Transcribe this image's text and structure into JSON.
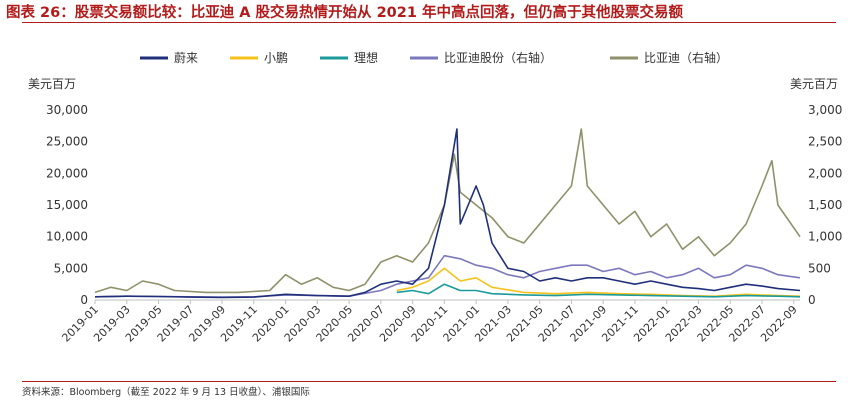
{
  "figure": {
    "title": "图表 26：股票交易额比较：比亚迪 A 股交易热情开始从 2021 年中高点回落，但仍高于其他股票交易额",
    "source": "资料来源：Bloomberg（截至 2022 年 9 月 13 日收盘）、浦银国际"
  },
  "chart_data": {
    "type": "line",
    "left_unit": "美元百万",
    "right_unit": "美元百万",
    "y_left": {
      "min": 0,
      "max": 30000,
      "ticks": [
        "0",
        "5,000",
        "10,000",
        "15,000",
        "20,000",
        "25,000",
        "30,000"
      ]
    },
    "y_right": {
      "min": 0,
      "max": 3000,
      "ticks": [
        "0",
        "500",
        "1,000",
        "1,500",
        "2,000",
        "2,500",
        "3,000"
      ]
    },
    "x_ticks": [
      "2019-01",
      "2019-03",
      "2019-05",
      "2019-07",
      "2019-09",
      "2019-11",
      "2020-01",
      "2020-03",
      "2020-05",
      "2020-07",
      "2020-09",
      "2020-11",
      "2021-01",
      "2021-03",
      "2021-05",
      "2021-07",
      "2021-09",
      "2021-11",
      "2022-01",
      "2022-03",
      "2022-05",
      "2022-07",
      "2022-09"
    ],
    "x_range": [
      "2019-01",
      "2022-09-13"
    ],
    "grid": false,
    "legend_position": "top",
    "series": [
      {
        "name": "蔚来",
        "axis": "left",
        "color": "#1f2f7a",
        "x": [
          "2019-01",
          "2019-03",
          "2019-05",
          "2019-07",
          "2019-09",
          "2019-11",
          "2020-01",
          "2020-03",
          "2020-05",
          "2020-06",
          "2020-07",
          "2020-08",
          "2020-09",
          "2020-10",
          "2020-11",
          "2020-11-25",
          "2020-12",
          "2021-01",
          "2021-01-15",
          "2021-02",
          "2021-03",
          "2021-04",
          "2021-05",
          "2021-06",
          "2021-07",
          "2021-08",
          "2021-09",
          "2021-10",
          "2021-11",
          "2021-12",
          "2022-01",
          "2022-02",
          "2022-03",
          "2022-04",
          "2022-05",
          "2022-06",
          "2022-07",
          "2022-08",
          "2022-09-13"
        ],
        "y": [
          500,
          600,
          550,
          450,
          400,
          450,
          900,
          700,
          600,
          1200,
          2500,
          3000,
          2500,
          5000,
          15000,
          27000,
          12000,
          18000,
          15000,
          9000,
          5000,
          4500,
          3000,
          3500,
          3000,
          3500,
          3500,
          3000,
          2500,
          3000,
          2500,
          2000,
          1800,
          1500,
          2000,
          2500,
          2200,
          1800,
          1500
        ]
      },
      {
        "name": "小鹏",
        "axis": "left",
        "color": "#f5c21b",
        "x": [
          "2020-08",
          "2020-09",
          "2020-10",
          "2020-11",
          "2020-12",
          "2021-01",
          "2021-02",
          "2021-04",
          "2021-06",
          "2021-08",
          "2021-10",
          "2021-12",
          "2022-02",
          "2022-04",
          "2022-06",
          "2022-08",
          "2022-09-13"
        ],
        "y": [
          1500,
          2000,
          3000,
          5000,
          3000,
          3500,
          2000,
          1200,
          1000,
          1200,
          1000,
          900,
          700,
          600,
          900,
          700,
          600
        ]
      },
      {
        "name": "理想",
        "axis": "left",
        "color": "#1a9a9a",
        "x": [
          "2020-08",
          "2020-09",
          "2020-10",
          "2020-11",
          "2020-12",
          "2021-01",
          "2021-02",
          "2021-04",
          "2021-06",
          "2021-08",
          "2021-10",
          "2021-12",
          "2022-02",
          "2022-04",
          "2022-06",
          "2022-08",
          "2022-09-13"
        ],
        "y": [
          1200,
          1500,
          1000,
          2500,
          1500,
          1500,
          1000,
          800,
          700,
          900,
          800,
          700,
          600,
          500,
          700,
          600,
          500
        ]
      },
      {
        "name": "比亚迪股份（右轴）",
        "axis": "right",
        "color": "#7c78bd",
        "x": [
          "2019-01",
          "2019-03",
          "2019-05",
          "2019-07",
          "2019-09",
          "2019-11",
          "2020-01",
          "2020-03",
          "2020-05",
          "2020-07",
          "2020-08",
          "2020-09",
          "2020-10",
          "2020-11",
          "2020-12",
          "2021-01",
          "2021-02",
          "2021-03",
          "2021-04",
          "2021-05",
          "2021-06",
          "2021-07",
          "2021-08",
          "2021-09",
          "2021-10",
          "2021-11",
          "2021-12",
          "2022-01",
          "2022-02",
          "2022-03",
          "2022-04",
          "2022-05",
          "2022-06",
          "2022-07",
          "2022-08",
          "2022-09-13"
        ],
        "y": [
          50,
          60,
          55,
          50,
          45,
          50,
          80,
          70,
          60,
          150,
          250,
          300,
          350,
          700,
          650,
          550,
          500,
          400,
          350,
          450,
          500,
          550,
          550,
          450,
          500,
          400,
          450,
          350,
          400,
          500,
          350,
          400,
          550,
          500,
          400,
          350
        ]
      },
      {
        "name": "比亚迪（右轴）",
        "axis": "right",
        "color": "#8f916a",
        "x": [
          "2019-01",
          "2019-02",
          "2019-03",
          "2019-04",
          "2019-05",
          "2019-06",
          "2019-08",
          "2019-10",
          "2019-12",
          "2020-01",
          "2020-02",
          "2020-03",
          "2020-04",
          "2020-05",
          "2020-06",
          "2020-07",
          "2020-08",
          "2020-09",
          "2020-10",
          "2020-11",
          "2020-11-20",
          "2020-12",
          "2021-01",
          "2021-02",
          "2021-03",
          "2021-04",
          "2021-05",
          "2021-06",
          "2021-07",
          "2021-07-20",
          "2021-08",
          "2021-09",
          "2021-10",
          "2021-11",
          "2021-12",
          "2022-01",
          "2022-02",
          "2022-03",
          "2022-04",
          "2022-05",
          "2022-06",
          "2022-07",
          "2022-07-20",
          "2022-08",
          "2022-09-13"
        ],
        "y": [
          120,
          200,
          150,
          300,
          250,
          150,
          120,
          120,
          150,
          400,
          250,
          350,
          200,
          150,
          250,
          600,
          700,
          600,
          900,
          1500,
          2300,
          1700,
          1500,
          1300,
          1000,
          900,
          1200,
          1500,
          1800,
          2700,
          1800,
          1500,
          1200,
          1400,
          1000,
          1200,
          800,
          1000,
          700,
          900,
          1200,
          1800,
          2200,
          1500,
          1000
        ]
      }
    ]
  }
}
